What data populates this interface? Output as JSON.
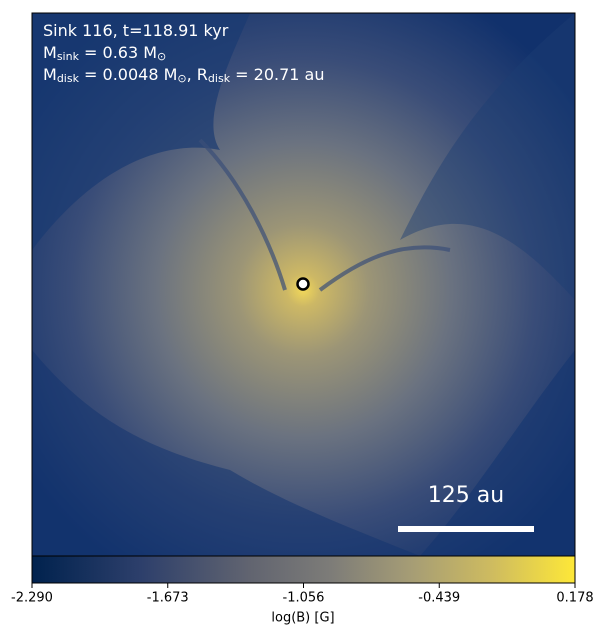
{
  "chart_data": {
    "type": "image",
    "annotations": [
      [
        "Sink 116, t=118.91 kyr"
      ],
      [
        "M",
        "sink",
        " = 0.63 M",
        "⊙"
      ],
      [
        "M",
        "disk",
        " = 0.0048 M",
        "⊙",
        ", R",
        "disk",
        " = 20.71 au"
      ]
    ],
    "scale_bar": "125 au",
    "colormap": "cividis",
    "colorbar": {
      "label": "log(B) [G]",
      "clim": [
        -2.29,
        0.178
      ],
      "ticks": [
        {
          "value": -2.29,
          "label": "-2.290"
        },
        -1.673,
        -1.056,
        -0.439,
        0.178
      ]
    }
  }
}
